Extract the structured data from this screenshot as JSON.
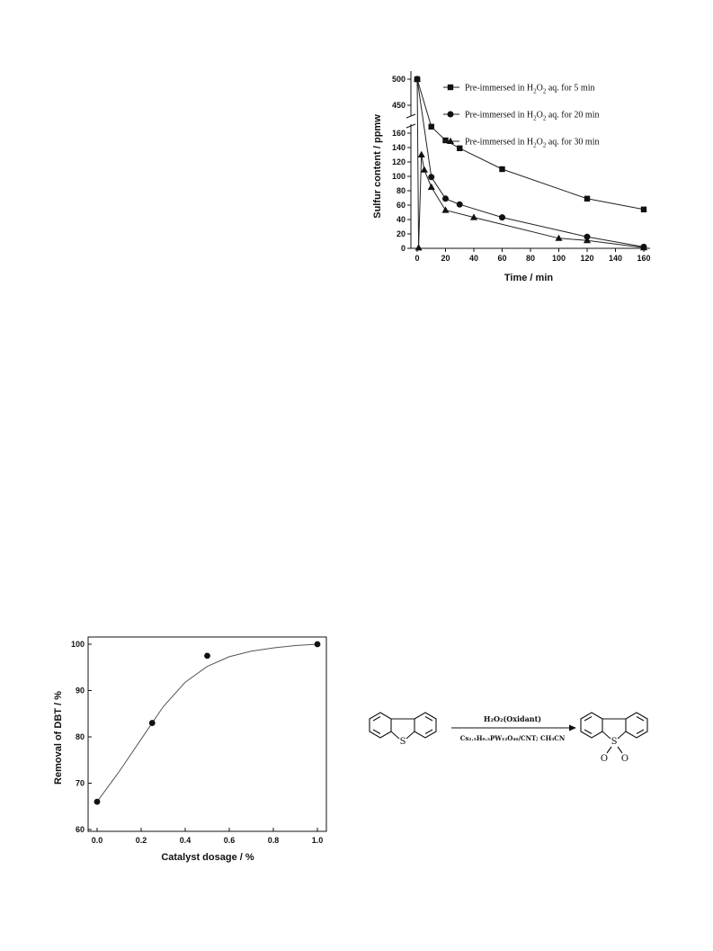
{
  "chart_data": [
    {
      "type": "line",
      "title": "",
      "xlabel": "Time / min",
      "ylabel": "Sulfur content / ppmw",
      "xlim": [
        0,
        160
      ],
      "x_ticks": [
        0,
        20,
        40,
        60,
        80,
        100,
        120,
        140,
        160
      ],
      "y_ticks_lower": [
        0,
        20,
        40,
        60,
        80,
        100,
        120,
        140,
        160
      ],
      "y_ticks_upper": [
        450,
        500
      ],
      "y_axis_break": true,
      "grid": false,
      "legend_position": "top-right",
      "series": [
        {
          "name": "Pre-immersed in H2O2 aq. for 5 min",
          "legend_parts": [
            "Pre-immersed in H",
            "2",
            "O",
            "2",
            " aq. for 5 min"
          ],
          "marker": "square",
          "x": [
            0,
            10,
            20,
            30,
            60,
            120,
            160
          ],
          "y": [
            500,
            169,
            150,
            139,
            110,
            69,
            54
          ]
        },
        {
          "name": "Pre-immersed in H2O2 aq. for 20 min",
          "legend_parts": [
            "Pre-immersed in H",
            "2",
            "O",
            "2",
            " aq. for 20 min"
          ],
          "marker": "circle",
          "x": [
            0,
            10,
            20,
            30,
            60,
            120,
            160
          ],
          "y": [
            500,
            99,
            69,
            61,
            43,
            16,
            2
          ]
        },
        {
          "name": "Pre-immersed in H2O2 aq. for 30 min",
          "legend_parts": [
            "Pre-immersed in H",
            "2",
            "O",
            "2",
            " aq. for 30 min"
          ],
          "marker": "triangle",
          "x": [
            0,
            1,
            3,
            5,
            10,
            20,
            40,
            100,
            120,
            160
          ],
          "y": [
            500,
            177,
            130,
            109,
            85,
            53,
            43,
            14,
            11,
            1
          ]
        }
      ]
    },
    {
      "type": "scatter",
      "title": "",
      "xlabel": "Catalyst dosage / %",
      "ylabel": "Removal of DBT / %",
      "xlim": [
        0,
        1.0
      ],
      "ylim": [
        60,
        100
      ],
      "x_ticks": [
        "0.0",
        "0.2",
        "0.4",
        "0.6",
        "0.8",
        "1.0"
      ],
      "y_ticks": [
        "60",
        "70",
        "80",
        "90",
        "100"
      ],
      "grid": false,
      "points": {
        "x": [
          0.0,
          0.25,
          0.5,
          1.0
        ],
        "y": [
          66,
          83,
          97.5,
          100
        ]
      },
      "fit_curve": {
        "x": [
          0,
          0.1,
          0.2,
          0.25,
          0.3,
          0.4,
          0.5,
          0.6,
          0.7,
          0.8,
          0.9,
          1.0
        ],
        "y": [
          66,
          72.5,
          79.5,
          83,
          86.5,
          91.8,
          95.2,
          97.3,
          98.5,
          99.2,
          99.7,
          100
        ]
      }
    }
  ],
  "scheme": {
    "reactant_atom": "S",
    "product_atom": "S",
    "product_oxygens": [
      "O",
      "O"
    ],
    "oxidant_label": "H₂O₂(Oxidant)",
    "catalyst_label": "Cs₂.₅H₀.₅PW₁₂O₄₀/CNT; CH₃CN"
  }
}
